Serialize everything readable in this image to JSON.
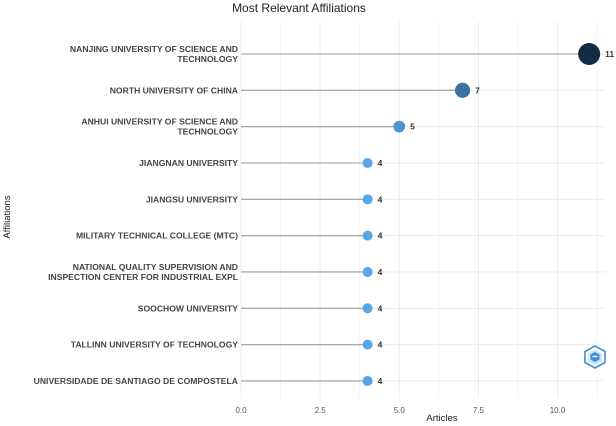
{
  "chart_data": {
    "type": "lollipop",
    "title": "Most Relevant Affiliations",
    "xlabel": "Articles",
    "ylabel": "Affiliations",
    "xlim": [
      0,
      11.5
    ],
    "xticks": [
      "0.0",
      "2.5",
      "5.0",
      "7.5",
      "10.0"
    ],
    "grid": true,
    "categories": [
      [
        "NANJING UNIVERSITY OF SCIENCE AND",
        "TECHNOLOGY"
      ],
      [
        "NORTH UNIVERSITY OF CHINA"
      ],
      [
        "ANHUI UNIVERSITY OF SCIENCE AND",
        "TECHNOLOGY"
      ],
      [
        "JIANGNAN UNIVERSITY"
      ],
      [
        "JIANGSU UNIVERSITY"
      ],
      [
        "MILITARY TECHNICAL COLLEGE (MTC)"
      ],
      [
        "NATIONAL QUALITY SUPERVISION AND",
        "INSPECTION CENTER FOR INDUSTRIAL EXPL"
      ],
      [
        "SOOCHOW UNIVERSITY"
      ],
      [
        "TALLINN UNIVERSITY OF TECHNOLOGY"
      ],
      [
        "UNIVERSIDADE DE SANTIAGO DE COMPOSTELA"
      ]
    ],
    "values": [
      11,
      7,
      5,
      4,
      4,
      4,
      4,
      4,
      4,
      4
    ],
    "data_labels": [
      "11",
      "7",
      "5",
      "4",
      "4",
      "4",
      "4",
      "4",
      "4",
      "4"
    ],
    "colors": {
      "low": "#56a6e8",
      "high": "#132b43",
      "stem": "#9a9a9a",
      "grid": "#ebebeb"
    }
  },
  "logo": {
    "name": "bibliometrix-logo-icon",
    "color": "#3a8fd6"
  }
}
